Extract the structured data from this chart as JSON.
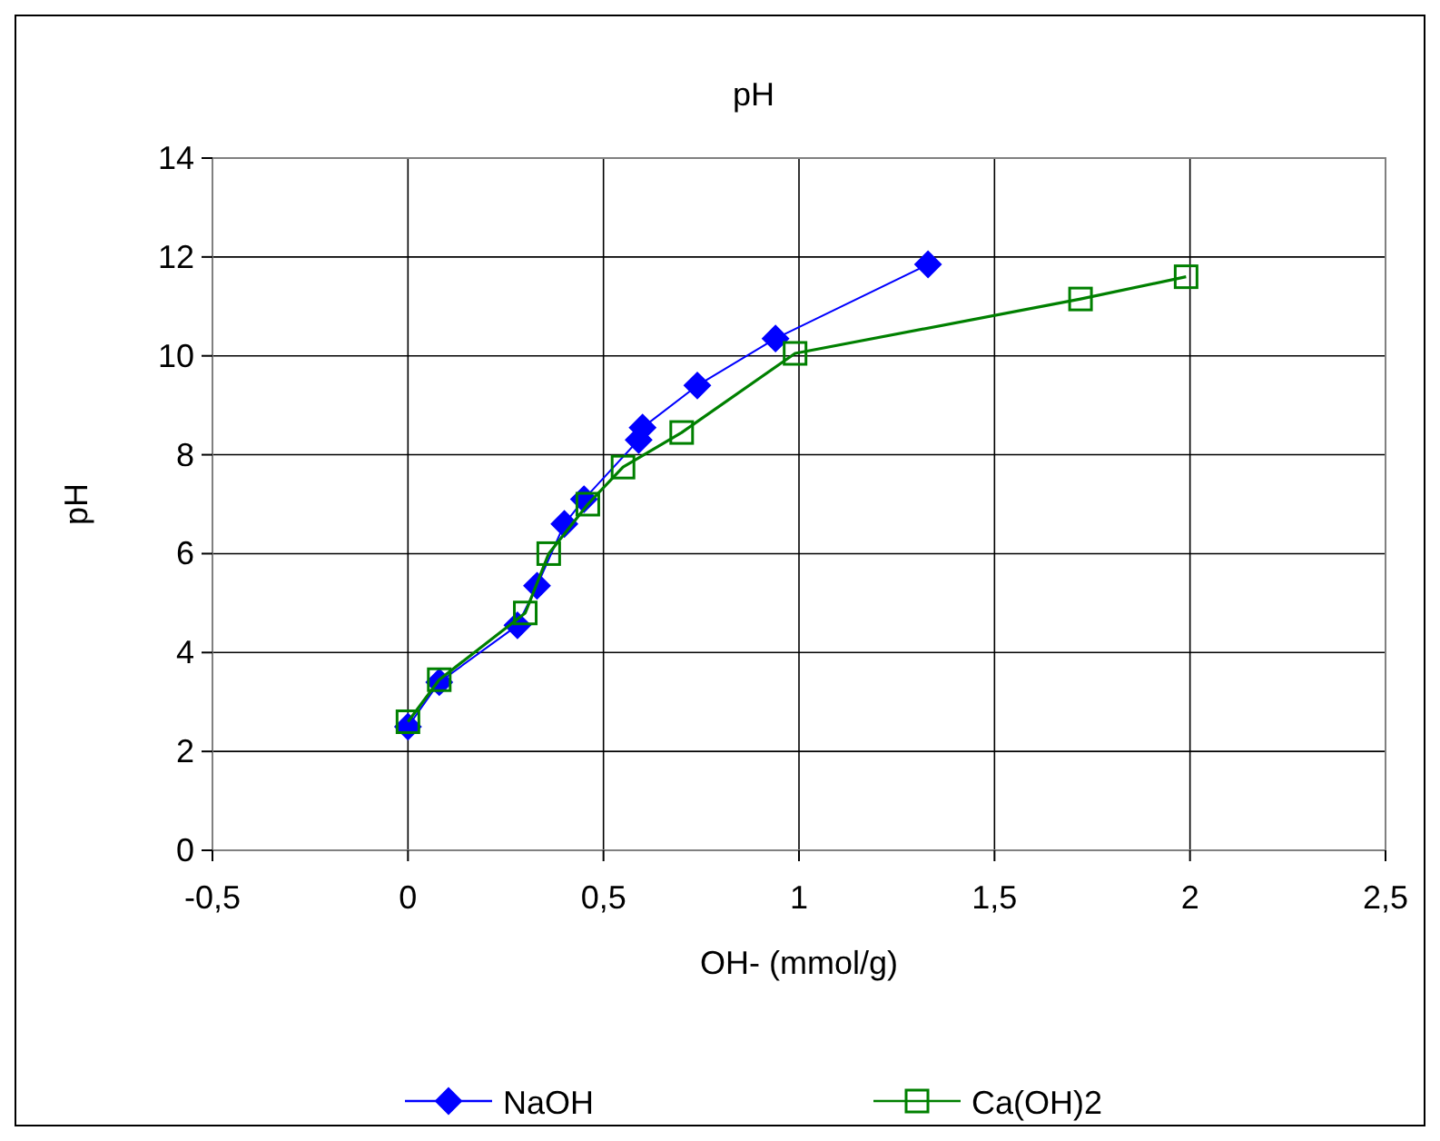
{
  "chart_data": {
    "type": "line",
    "title": "pH",
    "xlabel": "OH- (mmol/g)",
    "ylabel": "pH",
    "xlim": [
      -0.5,
      2.5
    ],
    "xticks": [
      {
        "value": -0.5,
        "label": "-0,5"
      },
      0,
      {
        "value": 0.5,
        "label": "0,5"
      },
      1,
      {
        "value": 1.5,
        "label": "1,5"
      },
      2,
      {
        "value": 2.5,
        "label": "2,5"
      }
    ],
    "ylim": [
      0,
      14
    ],
    "yticks": [
      0,
      2,
      4,
      6,
      8,
      10,
      12,
      14
    ],
    "grid": true,
    "legend": "bottom",
    "series": [
      {
        "name": "NaOH",
        "color": "#0000ff",
        "marker": "diamond",
        "x": [
          0,
          0.08,
          0.28,
          0.33,
          0.4,
          0.45,
          0.59,
          0.6,
          0.74,
          0.94,
          1.33
        ],
        "values": [
          2.5,
          3.4,
          4.55,
          5.35,
          6.6,
          7.1,
          8.3,
          8.55,
          9.4,
          10.35,
          11.85
        ]
      },
      {
        "name": "Ca(OH)2",
        "color": "#008000",
        "marker": "square",
        "x": [
          0,
          0.08,
          0.3,
          0.36,
          0.46,
          0.55,
          0.7,
          0.99,
          1.72,
          1.99
        ],
        "values": [
          2.6,
          3.45,
          4.8,
          6.0,
          7.0,
          7.75,
          8.45,
          10.05,
          11.15,
          11.6
        ]
      }
    ]
  }
}
